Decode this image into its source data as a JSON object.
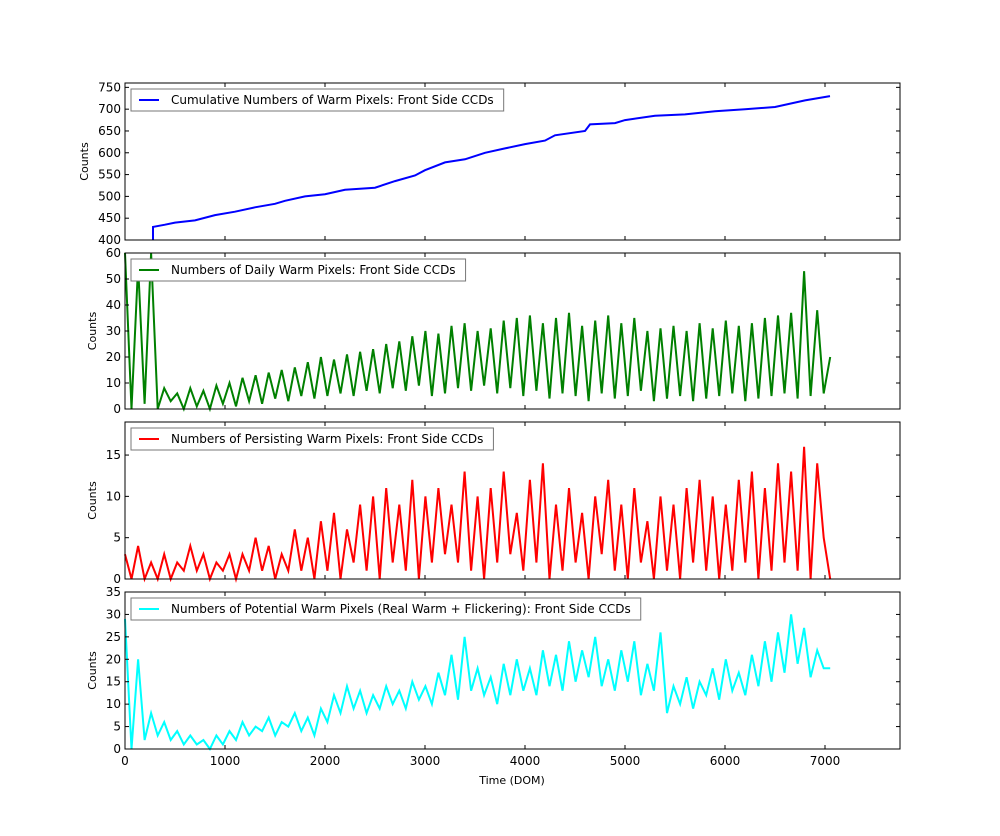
{
  "chart_data": [
    {
      "type": "line",
      "ylabel": "Counts",
      "ylim": [
        400,
        760
      ],
      "yticks": [
        400,
        450,
        500,
        550,
        600,
        650,
        700,
        750
      ],
      "xlim": [
        0,
        7750
      ],
      "xticks": [
        0,
        1000,
        2000,
        3000,
        4000,
        5000,
        6000,
        7000
      ],
      "legend": "top-left",
      "color": "#0000ff",
      "series": [
        {
          "name": "Cumulative Numbers of Warm Pixels: Front Side CCDs",
          "x": [
            280,
            280,
            400,
            500,
            700,
            900,
            1100,
            1300,
            1500,
            1600,
            1800,
            2000,
            2200,
            2500,
            2700,
            2900,
            3000,
            3200,
            3400,
            3600,
            3800,
            4000,
            4200,
            4300,
            4600,
            4650,
            4900,
            5000,
            5300,
            5600,
            5900,
            6200,
            6500,
            6800,
            7050
          ],
          "y": [
            400,
            430,
            435,
            440,
            445,
            457,
            465,
            475,
            483,
            490,
            500,
            505,
            515,
            520,
            535,
            548,
            560,
            578,
            585,
            600,
            610,
            620,
            628,
            640,
            650,
            665,
            668,
            675,
            685,
            688,
            695,
            700,
            705,
            720,
            730
          ]
        }
      ]
    },
    {
      "type": "line",
      "ylabel": "Counts",
      "ylim": [
        0,
        60
      ],
      "yticks": [
        0,
        10,
        20,
        30,
        40,
        50,
        60
      ],
      "xlim": [
        0,
        7750
      ],
      "xticks": [
        0,
        1000,
        2000,
        3000,
        4000,
        5000,
        6000,
        7000
      ],
      "legend": "top-left",
      "color": "#008000",
      "series": [
        {
          "name": "Numbers of Daily Warm Pixels: Front Side CCDs",
          "x_start": 0,
          "x_step": 65.3,
          "y": [
            60,
            0,
            55,
            2,
            60,
            0,
            8,
            3,
            6,
            0,
            8,
            1,
            7,
            0,
            9,
            2,
            10,
            1,
            12,
            3,
            13,
            2,
            14,
            4,
            15,
            3,
            16,
            5,
            18,
            4,
            20,
            5,
            19,
            6,
            21,
            5,
            22,
            7,
            23,
            6,
            25,
            8,
            26,
            7,
            28,
            9,
            30,
            5,
            29,
            6,
            32,
            8,
            33,
            7,
            30,
            9,
            31,
            6,
            34,
            8,
            35,
            5,
            36,
            7,
            33,
            4,
            35,
            6,
            37,
            5,
            32,
            3,
            34,
            6,
            36,
            4,
            33,
            5,
            35,
            7,
            30,
            3,
            31,
            4,
            32,
            5,
            30,
            3,
            33,
            4,
            31,
            5,
            34,
            6,
            32,
            3,
            33,
            4,
            35,
            5,
            36,
            6,
            37,
            4,
            53,
            5,
            38,
            6,
            20
          ]
        }
      ]
    },
    {
      "type": "line",
      "ylabel": "Counts",
      "ylim": [
        0,
        19
      ],
      "yticks": [
        0,
        5,
        10,
        15
      ],
      "xlim": [
        0,
        7750
      ],
      "xticks": [
        0,
        1000,
        2000,
        3000,
        4000,
        5000,
        6000,
        7000
      ],
      "legend": "top-left",
      "color": "#ff0000",
      "series": [
        {
          "name": "Numbers of Persisting Warm Pixels: Front Side CCDs",
          "x_start": 0,
          "x_step": 65.3,
          "y": [
            3,
            0,
            4,
            0,
            2,
            0,
            3,
            0,
            2,
            1,
            4,
            1,
            3,
            0,
            2,
            1,
            3,
            0,
            3,
            1,
            5,
            1,
            4,
            0,
            3,
            1,
            6,
            1,
            5,
            0,
            7,
            1,
            8,
            0,
            6,
            2,
            9,
            1,
            10,
            0,
            11,
            2,
            9,
            1,
            12,
            0,
            10,
            2,
            11,
            3,
            9,
            2,
            13,
            1,
            10,
            0,
            11,
            2,
            13,
            3,
            8,
            1,
            12,
            2,
            14,
            0,
            9,
            1,
            11,
            2,
            8,
            0,
            10,
            3,
            12,
            1,
            9,
            0,
            11,
            2,
            7,
            0,
            10,
            1,
            9,
            0,
            11,
            2,
            12,
            1,
            10,
            0,
            9,
            1,
            12,
            2,
            13,
            0,
            11,
            1,
            14,
            2,
            13,
            1,
            16,
            0,
            14,
            5,
            0
          ]
        }
      ]
    },
    {
      "type": "line",
      "ylabel": "Counts",
      "xlabel": "Time (DOM)",
      "ylim": [
        0,
        35
      ],
      "yticks": [
        0,
        5,
        10,
        15,
        20,
        25,
        30,
        35
      ],
      "xlim": [
        0,
        7750
      ],
      "xticks": [
        0,
        1000,
        2000,
        3000,
        4000,
        5000,
        6000,
        7000
      ],
      "legend": "top-left",
      "color": "#00ffff",
      "series": [
        {
          "name": "Numbers of Potential Warm Pixels (Real Warm + Flickering): Front Side CCDs",
          "x_start": 0,
          "x_step": 65.3,
          "y": [
            29,
            0,
            20,
            2,
            8,
            3,
            6,
            2,
            4,
            1,
            3,
            1,
            2,
            0,
            3,
            1,
            4,
            2,
            6,
            3,
            5,
            4,
            7,
            3,
            6,
            5,
            8,
            4,
            7,
            3,
            9,
            6,
            12,
            8,
            14,
            9,
            13,
            8,
            12,
            9,
            14,
            10,
            13,
            9,
            15,
            11,
            14,
            10,
            17,
            12,
            21,
            11,
            25,
            13,
            18,
            12,
            16,
            10,
            19,
            12,
            20,
            13,
            18,
            12,
            22,
            14,
            21,
            13,
            24,
            15,
            22,
            16,
            25,
            14,
            20,
            13,
            22,
            15,
            24,
            12,
            19,
            13,
            26,
            8,
            14,
            10,
            16,
            9,
            15,
            12,
            18,
            11,
            20,
            13,
            17,
            12,
            21,
            14,
            24,
            15,
            26,
            17,
            30,
            19,
            27,
            16,
            22,
            18,
            18
          ]
        }
      ]
    }
  ]
}
